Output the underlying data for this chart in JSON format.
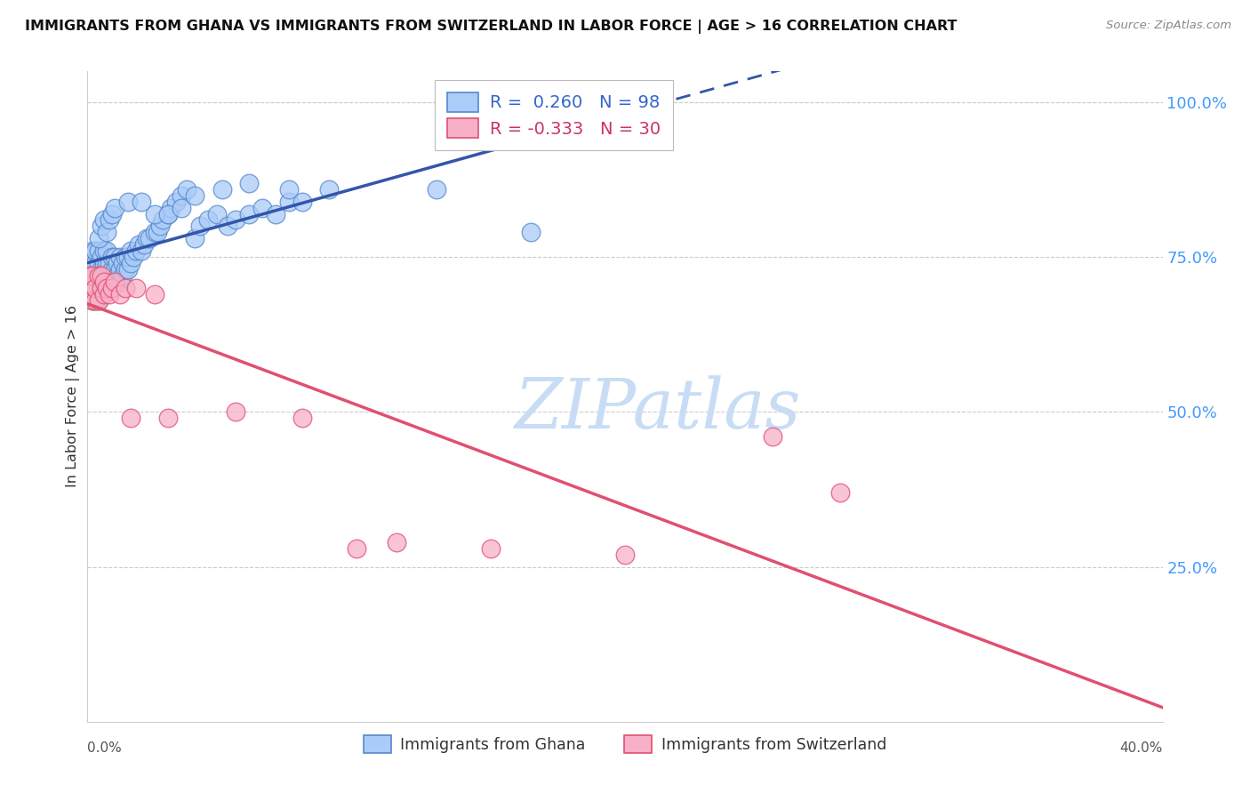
{
  "title": "IMMIGRANTS FROM GHANA VS IMMIGRANTS FROM SWITZERLAND IN LABOR FORCE | AGE > 16 CORRELATION CHART",
  "source": "Source: ZipAtlas.com",
  "ylabel": "In Labor Force | Age > 16",
  "xlim": [
    0.0,
    0.4
  ],
  "ylim": [
    0.0,
    1.05
  ],
  "yticks": [
    0.25,
    0.5,
    0.75,
    1.0
  ],
  "ytick_labels": [
    "25.0%",
    "50.0%",
    "75.0%",
    "100.0%"
  ],
  "r_ghana": 0.26,
  "n_ghana": 98,
  "r_swiss": -0.333,
  "n_swiss": 30,
  "color_ghana_fill": "#aaccf8",
  "color_ghana_edge": "#5588cc",
  "color_swiss_fill": "#f8b0c8",
  "color_swiss_edge": "#e05070",
  "color_ghana_line": "#3355aa",
  "color_swiss_line": "#e05070",
  "legend_box_color": "#ddbbcc",
  "watermark_color": "#c8ddf5",
  "grid_color": "#cccccc",
  "right_tick_color": "#4499ff",
  "ghana_x": [
    0.001,
    0.001,
    0.001,
    0.002,
    0.002,
    0.002,
    0.002,
    0.002,
    0.003,
    0.003,
    0.003,
    0.003,
    0.003,
    0.004,
    0.004,
    0.004,
    0.004,
    0.004,
    0.005,
    0.005,
    0.005,
    0.005,
    0.006,
    0.006,
    0.006,
    0.006,
    0.007,
    0.007,
    0.007,
    0.007,
    0.008,
    0.008,
    0.008,
    0.009,
    0.009,
    0.009,
    0.01,
    0.01,
    0.01,
    0.011,
    0.011,
    0.012,
    0.012,
    0.012,
    0.013,
    0.013,
    0.014,
    0.014,
    0.015,
    0.015,
    0.016,
    0.016,
    0.017,
    0.018,
    0.019,
    0.02,
    0.021,
    0.022,
    0.023,
    0.025,
    0.026,
    0.027,
    0.028,
    0.03,
    0.031,
    0.033,
    0.035,
    0.037,
    0.04,
    0.042,
    0.045,
    0.048,
    0.052,
    0.055,
    0.06,
    0.065,
    0.07,
    0.075,
    0.08,
    0.09,
    0.004,
    0.005,
    0.006,
    0.007,
    0.008,
    0.009,
    0.01,
    0.015,
    0.02,
    0.025,
    0.03,
    0.035,
    0.04,
    0.05,
    0.06,
    0.075,
    0.13,
    0.165
  ],
  "ghana_y": [
    0.7,
    0.72,
    0.74,
    0.68,
    0.7,
    0.72,
    0.74,
    0.76,
    0.68,
    0.7,
    0.72,
    0.74,
    0.76,
    0.68,
    0.7,
    0.72,
    0.74,
    0.76,
    0.69,
    0.71,
    0.73,
    0.75,
    0.7,
    0.72,
    0.74,
    0.76,
    0.7,
    0.72,
    0.74,
    0.76,
    0.7,
    0.72,
    0.74,
    0.71,
    0.73,
    0.75,
    0.71,
    0.73,
    0.75,
    0.72,
    0.74,
    0.71,
    0.73,
    0.75,
    0.72,
    0.74,
    0.73,
    0.75,
    0.73,
    0.75,
    0.74,
    0.76,
    0.75,
    0.76,
    0.77,
    0.76,
    0.77,
    0.78,
    0.78,
    0.79,
    0.79,
    0.8,
    0.81,
    0.82,
    0.83,
    0.84,
    0.85,
    0.86,
    0.78,
    0.8,
    0.81,
    0.82,
    0.8,
    0.81,
    0.82,
    0.83,
    0.82,
    0.84,
    0.84,
    0.86,
    0.78,
    0.8,
    0.81,
    0.79,
    0.81,
    0.82,
    0.83,
    0.84,
    0.84,
    0.82,
    0.82,
    0.83,
    0.85,
    0.86,
    0.87,
    0.86,
    0.86,
    0.79
  ],
  "swiss_x": [
    0.001,
    0.001,
    0.002,
    0.002,
    0.003,
    0.003,
    0.004,
    0.004,
    0.005,
    0.005,
    0.006,
    0.006,
    0.007,
    0.008,
    0.009,
    0.01,
    0.012,
    0.014,
    0.016,
    0.018,
    0.025,
    0.03,
    0.055,
    0.08,
    0.1,
    0.115,
    0.15,
    0.2,
    0.255,
    0.28
  ],
  "swiss_y": [
    0.7,
    0.72,
    0.68,
    0.72,
    0.68,
    0.7,
    0.72,
    0.68,
    0.7,
    0.72,
    0.69,
    0.71,
    0.7,
    0.69,
    0.7,
    0.71,
    0.69,
    0.7,
    0.49,
    0.7,
    0.69,
    0.49,
    0.5,
    0.49,
    0.28,
    0.29,
    0.28,
    0.27,
    0.46,
    0.37
  ]
}
